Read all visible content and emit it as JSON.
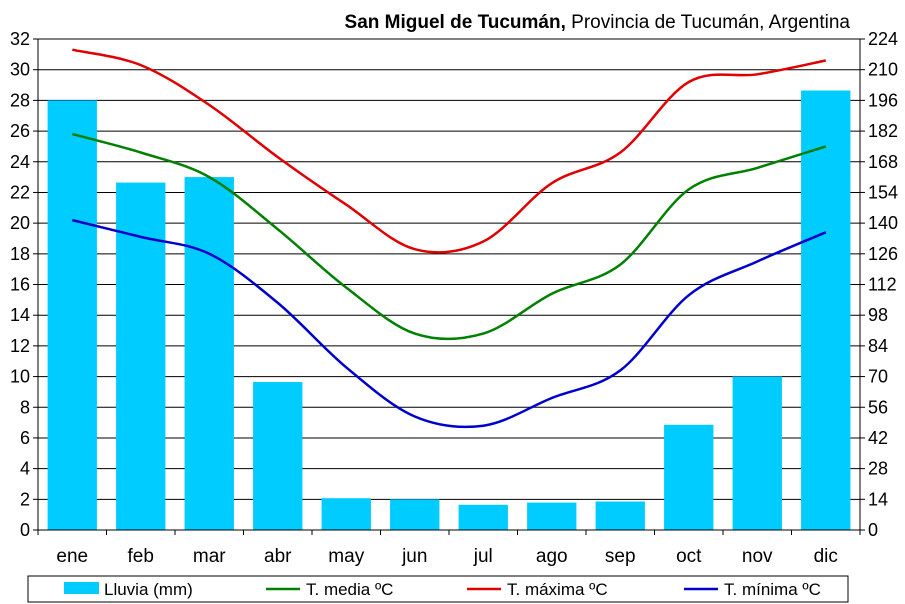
{
  "chart_data": {
    "type": "bar+line",
    "title_bold": "San Miguel de Tucumán,",
    "title_rest": " Provincia de Tucumán, Argentina",
    "categories": [
      "ene",
      "feb",
      "mar",
      "abr",
      "may",
      "jun",
      "jul",
      "ago",
      "sep",
      "oct",
      "nov",
      "dic"
    ],
    "y_left": {
      "min": 0,
      "max": 32,
      "step": 2
    },
    "y_right": {
      "min": 0,
      "max": 224,
      "step": 14
    },
    "grid": true,
    "legend_position": "bottom",
    "bars": {
      "name": "Lluvia (mm)",
      "color": "#00CCFF",
      "axis": "right",
      "values": [
        196,
        158.5,
        161,
        67.5,
        14.5,
        14,
        11.5,
        12.5,
        13,
        48,
        70,
        200.5
      ]
    },
    "series": [
      {
        "name": "T. media ºC",
        "color": "#008000",
        "axis": "left",
        "values": [
          25.8,
          24.6,
          23,
          19.6,
          15.8,
          12.8,
          12.8,
          15.4,
          17.3,
          22.2,
          23.6,
          25
        ]
      },
      {
        "name": "T. máxima ºC",
        "color": "#E00000",
        "axis": "left",
        "values": [
          31.3,
          30.3,
          27.7,
          24.3,
          21.2,
          18.3,
          18.8,
          22.6,
          24.6,
          29.2,
          29.7,
          30.6
        ]
      },
      {
        "name": "T. mínima ºC",
        "color": "#0000CC",
        "axis": "left",
        "values": [
          20.2,
          19.1,
          18,
          14.8,
          10.6,
          7.4,
          6.8,
          8.6,
          10.4,
          15.3,
          17.5,
          19.4
        ]
      }
    ]
  }
}
